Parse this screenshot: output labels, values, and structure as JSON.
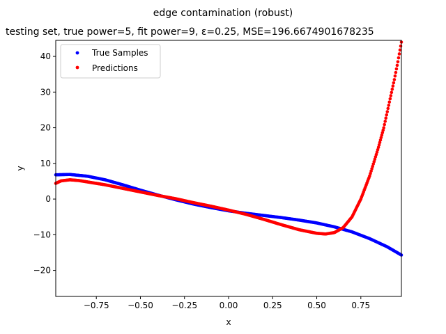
{
  "chart_data": {
    "type": "scatter",
    "title": "edge contamination (robust)",
    "subtitle": "testing set, true power=5, fit power=9, ε=0.25, MSE=196.6674901678235",
    "xlabel": "x",
    "ylabel": "y",
    "xlim": [
      -0.98,
      0.98
    ],
    "ylim": [
      -27.3,
      44.5
    ],
    "x_ticks": [
      -0.75,
      -0.5,
      -0.25,
      0.0,
      0.25,
      0.5,
      0.75
    ],
    "x_tick_labels": [
      "−0.75",
      "−0.50",
      "−0.25",
      "0.00",
      "0.25",
      "0.50",
      "0.75"
    ],
    "y_ticks": [
      -20,
      -10,
      0,
      10,
      20,
      30,
      40
    ],
    "y_tick_labels": [
      "−20",
      "−10",
      "0",
      "10",
      "20",
      "30",
      "40"
    ],
    "grid": false,
    "legend_position": "top-left",
    "series": [
      {
        "name": "True Samples",
        "color": "#0000ff",
        "x": [
          -0.98,
          -0.9,
          -0.8,
          -0.7,
          -0.6,
          -0.5,
          -0.4,
          -0.3,
          -0.2,
          -0.1,
          0.0,
          0.1,
          0.2,
          0.3,
          0.4,
          0.5,
          0.6,
          0.7,
          0.8,
          0.9,
          0.98
        ],
        "y": [
          6.8,
          6.9,
          6.4,
          5.4,
          4.0,
          2.5,
          1.1,
          -0.2,
          -1.4,
          -2.4,
          -3.3,
          -4.0,
          -4.6,
          -5.2,
          -5.9,
          -6.7,
          -7.8,
          -9.2,
          -11.1,
          -13.4,
          -15.7
        ]
      },
      {
        "name": "Predictions",
        "color": "#ff0000",
        "x": [
          -0.98,
          -0.95,
          -0.9,
          -0.85,
          -0.8,
          -0.7,
          -0.6,
          -0.5,
          -0.4,
          -0.3,
          -0.2,
          -0.1,
          0.0,
          0.1,
          0.2,
          0.3,
          0.4,
          0.5,
          0.55,
          0.6,
          0.65,
          0.7,
          0.75,
          0.8,
          0.85,
          0.88,
          0.9,
          0.92,
          0.94,
          0.96,
          0.98
        ],
        "y": [
          4.4,
          5.1,
          5.4,
          5.2,
          4.8,
          4.0,
          3.0,
          2.0,
          1.0,
          0.1,
          -1.0,
          -2.0,
          -3.1,
          -4.3,
          -5.7,
          -7.2,
          -8.6,
          -9.6,
          -9.8,
          -9.4,
          -8.0,
          -5.0,
          0.0,
          6.5,
          14.5,
          20.0,
          24.5,
          29.0,
          33.5,
          38.5,
          44.0
        ]
      }
    ]
  }
}
